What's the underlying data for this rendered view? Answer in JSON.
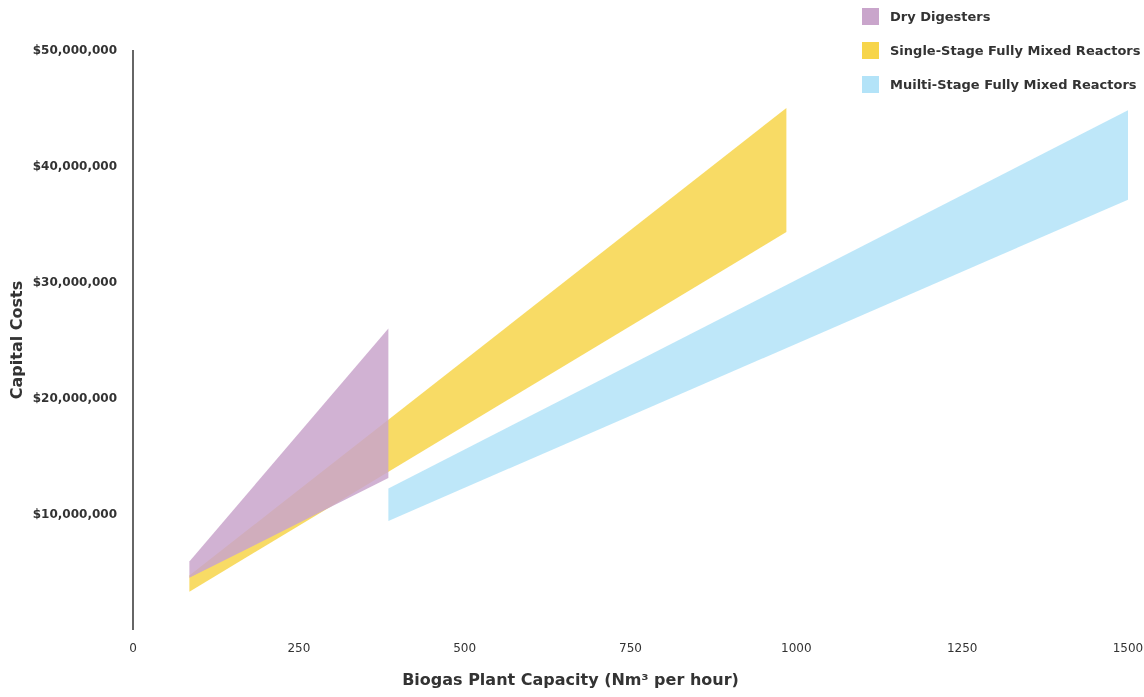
{
  "chart_data": {
    "type": "area",
    "xlabel": "Biogas Plant Capacity (Nm³ per hour)",
    "ylabel": "Capital Costs",
    "xlim": [
      0,
      1500
    ],
    "xticks": [
      0,
      250,
      500,
      750,
      1000,
      1250,
      1500
    ],
    "ylim": [
      0,
      50000000
    ],
    "yticks": [
      {
        "value": 10000000,
        "label": "$10,000,000"
      },
      {
        "value": 20000000,
        "label": "$20,000,000"
      },
      {
        "value": 30000000,
        "label": "$30,000,000"
      },
      {
        "value": 40000000,
        "label": "$40,000,000"
      },
      {
        "value": 50000000,
        "label": "$50,000,000"
      }
    ],
    "legend": "top right",
    "series": [
      {
        "name": "Dry Digesters",
        "color": "#c9a5cb",
        "x": [
          85,
          385
        ],
        "values": [
          null,
          null
        ],
        "lower": [
          4500000,
          13100000
        ],
        "upper": [
          5900000,
          26000000
        ]
      },
      {
        "name": "Single-Stage Fully Mixed Reactors",
        "color": "#f7d54a",
        "x": [
          85,
          985
        ],
        "values": [
          null,
          null
        ],
        "lower": [
          3300000,
          34300000
        ],
        "upper": [
          4700000,
          45000000
        ]
      },
      {
        "name": "Muilti-Stage Fully Mixed Reactors",
        "color": "#b3e3f8",
        "x": [
          385,
          1500
        ],
        "values": [
          null,
          null
        ],
        "lower": [
          9400000,
          37100000
        ],
        "upper": [
          12200000,
          44800000
        ]
      }
    ]
  }
}
